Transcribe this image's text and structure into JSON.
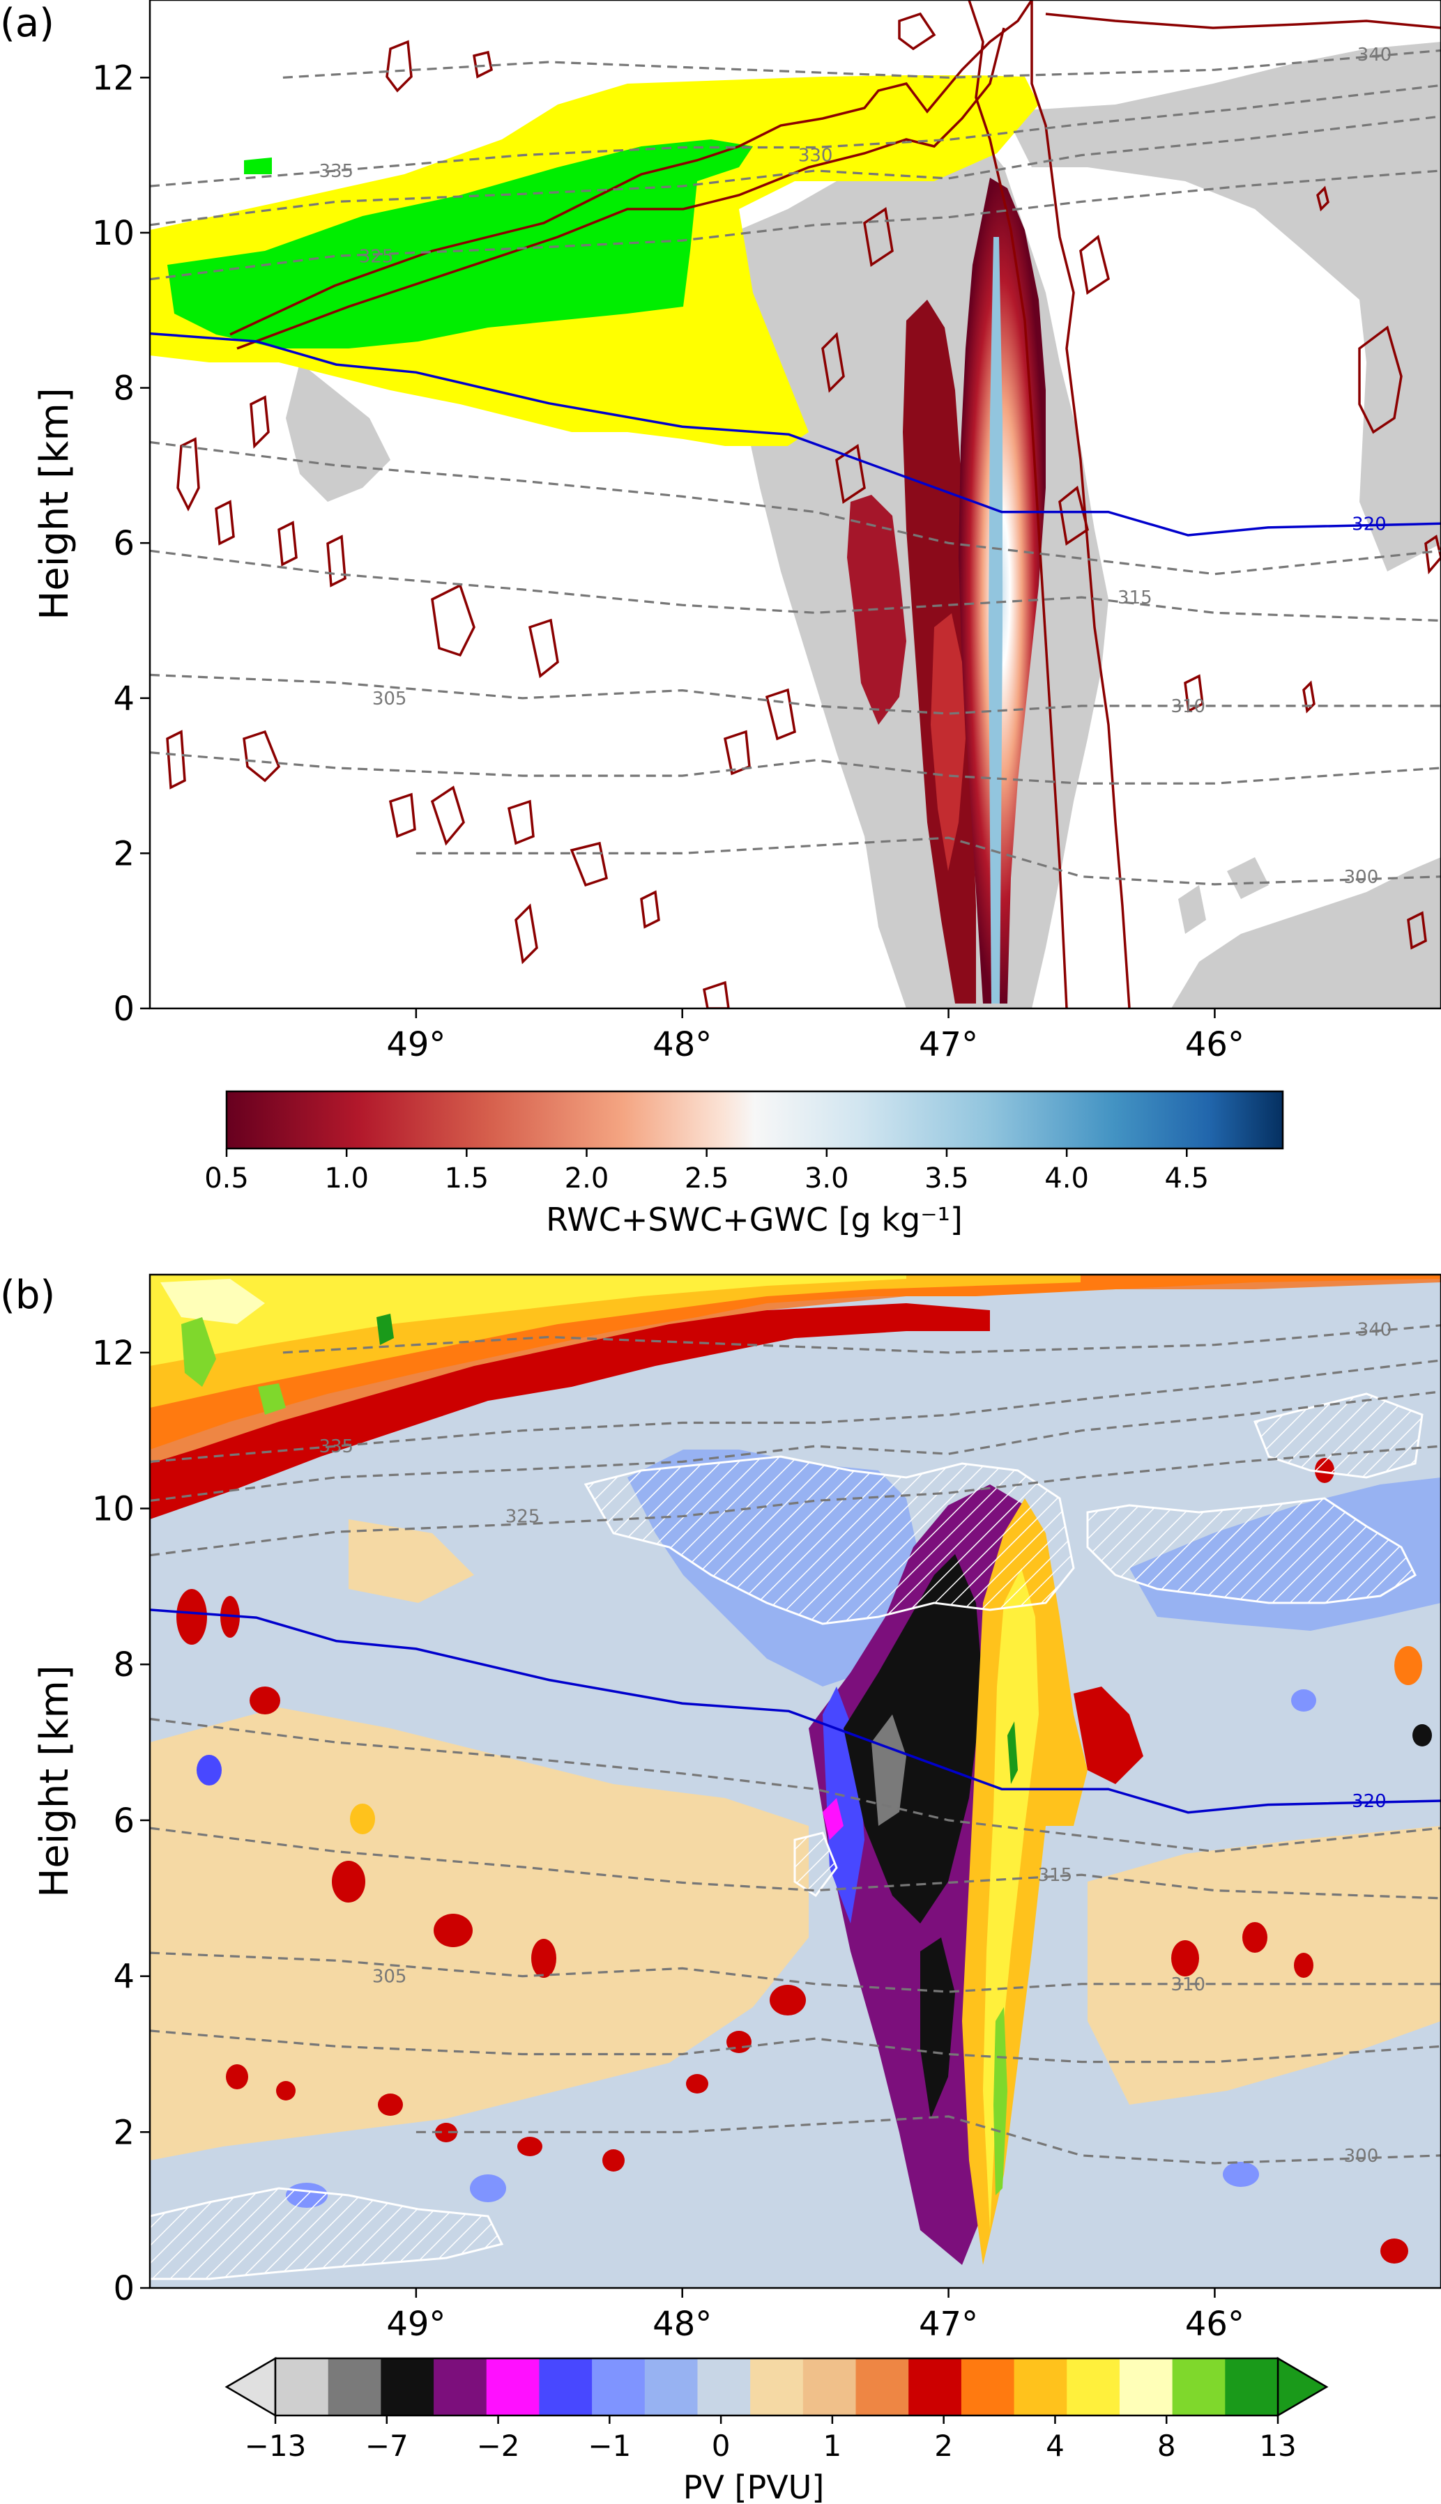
{
  "chart_data": [
    {
      "panel": "(a)",
      "type": "heatmap",
      "ylabel": "Height [km]",
      "xlim": [
        50.0,
        45.15
      ],
      "ylim": [
        0,
        13
      ],
      "x_ticks": [
        49,
        48,
        47,
        46
      ],
      "x_tick_labels": [
        "49°",
        "48°",
        "47°",
        "46°"
      ],
      "y_ticks": [
        0,
        2,
        4,
        6,
        8,
        10,
        12
      ],
      "y_tick_labels": [
        "0",
        "2",
        "4",
        "6",
        "8",
        "10",
        "12"
      ],
      "colorbar": {
        "label": "RWC+SWC+GWC [g kg⁻¹]",
        "range": [
          0.5,
          4.9
        ],
        "cmap": "RdBu",
        "tick_values": [
          0.5,
          1.0,
          1.5,
          2.0,
          2.5,
          3.0,
          3.5,
          4.0,
          4.5
        ],
        "tick_labels": [
          "0.5",
          "1.0",
          "1.5",
          "2.0",
          "2.5",
          "3.0",
          "3.5",
          "4.0",
          "4.5"
        ]
      },
      "theta_labels": [
        {
          "text": "335",
          "x": 49.3,
          "y": 10.8
        },
        {
          "text": "330",
          "x": 47.5,
          "y": 11.0
        },
        {
          "text": "325",
          "x": 49.15,
          "y": 9.7
        },
        {
          "text": "340",
          "x": 45.4,
          "y": 12.3
        },
        {
          "text": "315",
          "x": 46.3,
          "y": 5.3
        },
        {
          "text": "305",
          "x": 49.1,
          "y": 4.0
        },
        {
          "text": "310",
          "x": 46.1,
          "y": 3.9
        },
        {
          "text": "300",
          "x": 45.45,
          "y": 1.7
        }
      ],
      "blue_contour_label": {
        "text": "320",
        "x": 45.42,
        "y": 6.25
      },
      "blue_contour": [
        [
          50.0,
          8.7
        ],
        [
          49.6,
          8.6
        ],
        [
          49.3,
          8.3
        ],
        [
          49.0,
          8.2
        ],
        [
          48.5,
          7.8
        ],
        [
          48.0,
          7.5
        ],
        [
          47.6,
          7.4
        ],
        [
          47.2,
          6.9
        ],
        [
          46.8,
          6.4
        ],
        [
          46.4,
          6.4
        ],
        [
          46.1,
          6.1
        ],
        [
          45.8,
          6.2
        ],
        [
          45.15,
          6.25
        ]
      ],
      "theta_lines": [
        [
          [
            50.0,
            10.6
          ],
          [
            49.3,
            10.8
          ],
          [
            48.6,
            11.0
          ],
          [
            48.0,
            11.1
          ],
          [
            47.5,
            11.1
          ],
          [
            47.0,
            11.2
          ],
          [
            46.5,
            11.4
          ],
          [
            45.9,
            11.6
          ],
          [
            45.15,
            11.9
          ]
        ],
        [
          [
            50.0,
            10.1
          ],
          [
            49.3,
            10.4
          ],
          [
            48.6,
            10.5
          ],
          [
            48.0,
            10.6
          ],
          [
            47.5,
            10.8
          ],
          [
            47.0,
            10.7
          ],
          [
            46.5,
            11.0
          ],
          [
            45.9,
            11.2
          ],
          [
            45.15,
            11.5
          ]
        ],
        [
          [
            50.0,
            9.4
          ],
          [
            49.3,
            9.7
          ],
          [
            48.6,
            9.8
          ],
          [
            48.0,
            9.9
          ],
          [
            47.5,
            10.1
          ],
          [
            47.0,
            10.2
          ],
          [
            46.5,
            10.4
          ],
          [
            45.9,
            10.6
          ],
          [
            45.15,
            10.8
          ]
        ],
        [
          [
            49.5,
            12.0
          ],
          [
            48.5,
            12.2
          ],
          [
            47.0,
            12.0
          ],
          [
            46.0,
            12.1
          ],
          [
            45.15,
            12.35
          ]
        ],
        [
          [
            50.0,
            7.3
          ],
          [
            49.3,
            7.0
          ],
          [
            48.6,
            6.8
          ],
          [
            48.0,
            6.6
          ],
          [
            47.5,
            6.4
          ],
          [
            47.0,
            6.0
          ],
          [
            46.5,
            5.8
          ],
          [
            46.0,
            5.6
          ],
          [
            45.15,
            5.9
          ]
        ],
        [
          [
            50.0,
            5.9
          ],
          [
            49.3,
            5.6
          ],
          [
            48.6,
            5.4
          ],
          [
            48.0,
            5.2
          ],
          [
            47.5,
            5.1
          ],
          [
            47.0,
            5.2
          ],
          [
            46.5,
            5.3
          ],
          [
            46.0,
            5.1
          ],
          [
            45.15,
            5.0
          ]
        ],
        [
          [
            50.0,
            4.3
          ],
          [
            49.3,
            4.2
          ],
          [
            48.6,
            4.0
          ],
          [
            48.0,
            4.1
          ],
          [
            47.5,
            3.9
          ],
          [
            47.0,
            3.8
          ],
          [
            46.5,
            3.9
          ],
          [
            46.0,
            3.9
          ],
          [
            45.15,
            3.9
          ]
        ],
        [
          [
            50.0,
            3.3
          ],
          [
            49.3,
            3.1
          ],
          [
            48.6,
            3.0
          ],
          [
            48.0,
            3.0
          ],
          [
            47.5,
            3.2
          ],
          [
            47.0,
            3.0
          ],
          [
            46.5,
            2.9
          ],
          [
            46.0,
            2.9
          ],
          [
            45.15,
            3.1
          ]
        ],
        [
          [
            49.0,
            2.0
          ],
          [
            48.0,
            2.0
          ],
          [
            47.0,
            2.2
          ],
          [
            46.5,
            1.7
          ],
          [
            46.0,
            1.6
          ],
          [
            45.15,
            1.7
          ]
        ]
      ]
    },
    {
      "panel": "(b)",
      "type": "heatmap",
      "ylabel": "Height [km]",
      "xlim": [
        50.0,
        45.15
      ],
      "ylim": [
        0,
        13
      ],
      "x_ticks": [
        49,
        48,
        47,
        46
      ],
      "x_tick_labels": [
        "49°",
        "48°",
        "47°",
        "46°"
      ],
      "y_ticks": [
        0,
        2,
        4,
        6,
        8,
        10,
        12
      ],
      "y_tick_labels": [
        "0",
        "2",
        "4",
        "6",
        "8",
        "10",
        "12"
      ],
      "colorbar": {
        "label": "PV [PVU]",
        "extend": "both",
        "levels": [
          -13,
          -10,
          -7,
          -4,
          -2,
          -1.5,
          -1,
          -0.5,
          0,
          0.5,
          1,
          1.5,
          2,
          3,
          4,
          6,
          8,
          10,
          13
        ],
        "bin_colors": [
          "#cfcfcf",
          "#7a7a7a",
          "#111111",
          "#7c0f7c",
          "#ff10ff",
          "#4848ff",
          "#7f94ff",
          "#97b2f2",
          "#c8d6e6",
          "#f5d9a4",
          "#f0c08a",
          "#ee8644",
          "#cc0000",
          "#ff7a10",
          "#ffc21c",
          "#fff03c",
          "#ffffb8",
          "#7fd82c",
          "#1a9a1a"
        ],
        "under_color": "#e0e0e0",
        "over_color": "#1a9a1a",
        "tick_labels": [
          "−13",
          "−7",
          "−2",
          "−1",
          "0",
          "1",
          "2",
          "4",
          "8",
          "13"
        ]
      },
      "theta_labels": [
        {
          "text": "335",
          "x": 49.3,
          "y": 10.8
        },
        {
          "text": "325",
          "x": 48.6,
          "y": 9.9
        },
        {
          "text": "340",
          "x": 45.4,
          "y": 12.3
        },
        {
          "text": "315",
          "x": 46.6,
          "y": 5.3
        },
        {
          "text": "305",
          "x": 49.1,
          "y": 4.0
        },
        {
          "text": "310",
          "x": 46.1,
          "y": 3.9
        },
        {
          "text": "300",
          "x": 45.45,
          "y": 1.7
        }
      ],
      "blue_contour_label": {
        "text": "320",
        "x": 45.42,
        "y": 6.25
      },
      "blue_contour": [
        [
          50.0,
          8.7
        ],
        [
          49.6,
          8.6
        ],
        [
          49.3,
          8.3
        ],
        [
          49.0,
          8.2
        ],
        [
          48.5,
          7.8
        ],
        [
          48.0,
          7.5
        ],
        [
          47.6,
          7.4
        ],
        [
          47.2,
          6.9
        ],
        [
          46.8,
          6.4
        ],
        [
          46.4,
          6.4
        ],
        [
          46.1,
          6.1
        ],
        [
          45.8,
          6.2
        ],
        [
          45.15,
          6.25
        ]
      ],
      "theta_lines": [
        [
          [
            50.0,
            10.6
          ],
          [
            49.3,
            10.8
          ],
          [
            48.6,
            11.0
          ],
          [
            48.0,
            11.1
          ],
          [
            47.5,
            11.1
          ],
          [
            47.0,
            11.2
          ],
          [
            46.5,
            11.4
          ],
          [
            45.9,
            11.6
          ],
          [
            45.15,
            11.9
          ]
        ],
        [
          [
            50.0,
            10.1
          ],
          [
            49.3,
            10.4
          ],
          [
            48.6,
            10.5
          ],
          [
            48.0,
            10.6
          ],
          [
            47.5,
            10.8
          ],
          [
            47.0,
            10.7
          ],
          [
            46.5,
            11.0
          ],
          [
            45.9,
            11.2
          ],
          [
            45.15,
            11.5
          ]
        ],
        [
          [
            50.0,
            9.4
          ],
          [
            49.3,
            9.7
          ],
          [
            48.6,
            9.8
          ],
          [
            48.0,
            9.9
          ],
          [
            47.5,
            10.1
          ],
          [
            47.0,
            10.2
          ],
          [
            46.5,
            10.4
          ],
          [
            45.9,
            10.6
          ],
          [
            45.15,
            10.8
          ]
        ],
        [
          [
            49.5,
            12.0
          ],
          [
            48.5,
            12.2
          ],
          [
            47.0,
            12.0
          ],
          [
            46.0,
            12.1
          ],
          [
            45.15,
            12.35
          ]
        ],
        [
          [
            50.0,
            7.3
          ],
          [
            49.3,
            7.0
          ],
          [
            48.6,
            6.8
          ],
          [
            48.0,
            6.6
          ],
          [
            47.5,
            6.4
          ],
          [
            47.0,
            6.0
          ],
          [
            46.5,
            5.8
          ],
          [
            46.0,
            5.6
          ],
          [
            45.15,
            5.9
          ]
        ],
        [
          [
            50.0,
            5.9
          ],
          [
            49.3,
            5.6
          ],
          [
            48.6,
            5.4
          ],
          [
            48.0,
            5.2
          ],
          [
            47.5,
            5.1
          ],
          [
            47.0,
            5.2
          ],
          [
            46.5,
            5.3
          ],
          [
            46.0,
            5.1
          ],
          [
            45.15,
            5.0
          ]
        ],
        [
          [
            50.0,
            4.3
          ],
          [
            49.3,
            4.2
          ],
          [
            48.6,
            4.0
          ],
          [
            48.0,
            4.1
          ],
          [
            47.5,
            3.9
          ],
          [
            47.0,
            3.8
          ],
          [
            46.5,
            3.9
          ],
          [
            46.0,
            3.9
          ],
          [
            45.15,
            3.9
          ]
        ],
        [
          [
            50.0,
            3.3
          ],
          [
            49.3,
            3.1
          ],
          [
            48.6,
            3.0
          ],
          [
            48.0,
            3.0
          ],
          [
            47.5,
            3.2
          ],
          [
            47.0,
            3.0
          ],
          [
            46.5,
            2.9
          ],
          [
            46.0,
            2.9
          ],
          [
            45.15,
            3.1
          ]
        ],
        [
          [
            49.0,
            2.0
          ],
          [
            48.0,
            2.0
          ],
          [
            47.0,
            2.2
          ],
          [
            46.5,
            1.7
          ],
          [
            46.0,
            1.6
          ],
          [
            45.15,
            1.7
          ]
        ]
      ]
    }
  ]
}
